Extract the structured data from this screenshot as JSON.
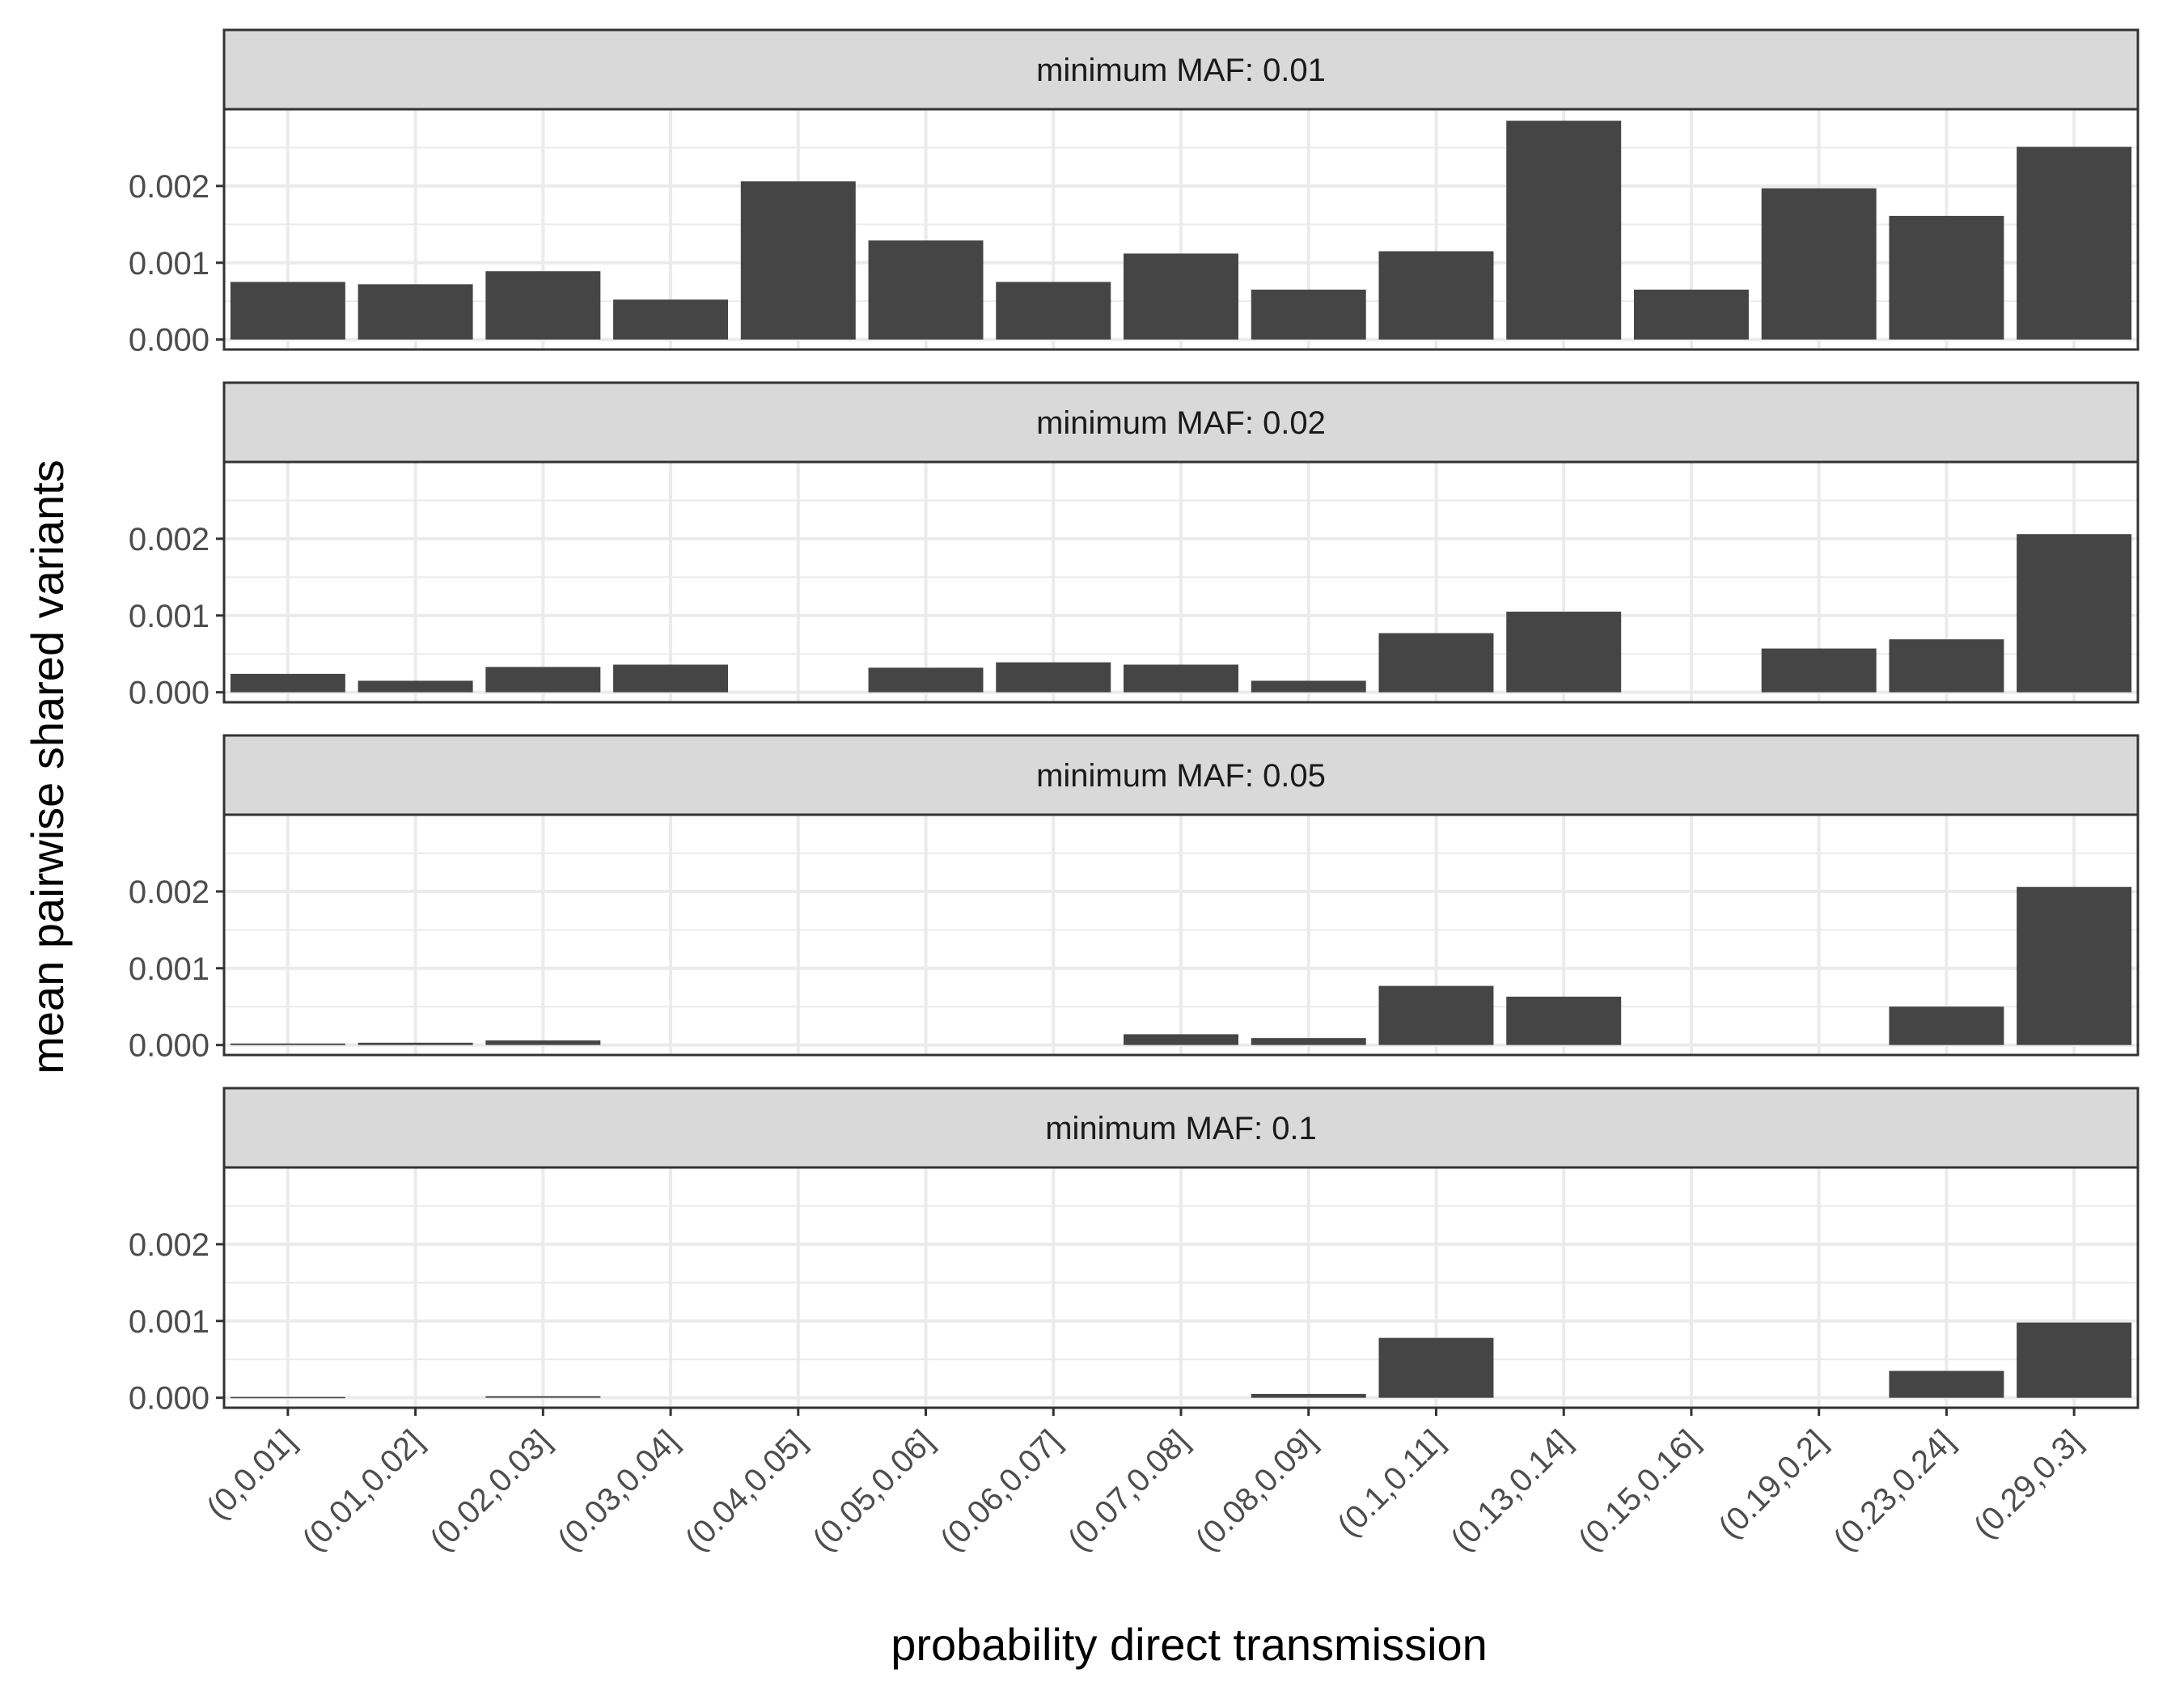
{
  "chart_data": {
    "type": "bar",
    "xlabel": "probability direct transmission",
    "ylabel": "mean pairwise shared variants",
    "categories": [
      "(0,0.01]",
      "(0.01,0.02]",
      "(0.02,0.03]",
      "(0.03,0.04]",
      "(0.04,0.05]",
      "(0.05,0.06]",
      "(0.06,0.07]",
      "(0.07,0.08]",
      "(0.08,0.09]",
      "(0.1,0.11]",
      "(0.13,0.14]",
      "(0.15,0.16]",
      "(0.19,0.2]",
      "(0.23,0.24]",
      "(0.29,0.3]"
    ],
    "ylim": [
      -0.00013,
      0.003
    ],
    "yticks": [
      0,
      0.001,
      0.002
    ],
    "ytick_labels": [
      "0.000",
      "0.001",
      "0.002"
    ],
    "grid": true,
    "bar_color": "#454545",
    "strip_color": "#d9d9d9",
    "panels": [
      {
        "label": "minimum MAF: 0.01",
        "values": [
          0.00075,
          0.00072,
          0.00089,
          0.00052,
          0.00206,
          0.00129,
          0.00075,
          0.00112,
          0.00065,
          0.00115,
          0.00285,
          0.00065,
          0.00197,
          0.00161,
          0.00251
        ]
      },
      {
        "label": "minimum MAF: 0.02",
        "values": [
          0.00024,
          0.00015,
          0.00033,
          0.00036,
          0,
          0.00032,
          0.00039,
          0.00036,
          0.00015,
          0.00077,
          0.00105,
          0,
          0.00057,
          0.00069,
          0.00206
        ]
      },
      {
        "label": "minimum MAF: 0.05",
        "values": [
          2e-05,
          3e-05,
          6e-05,
          0,
          0,
          0,
          0,
          0.00014,
          9e-05,
          0.00077,
          0.00063,
          0,
          0,
          0.0005,
          0.00206
        ]
      },
      {
        "label": "minimum MAF: 0.1",
        "values": [
          1e-05,
          0,
          2e-05,
          0,
          0,
          0,
          0,
          0,
          5e-05,
          0.00078,
          0,
          0,
          0,
          0.00035,
          0.00098
        ]
      }
    ]
  }
}
